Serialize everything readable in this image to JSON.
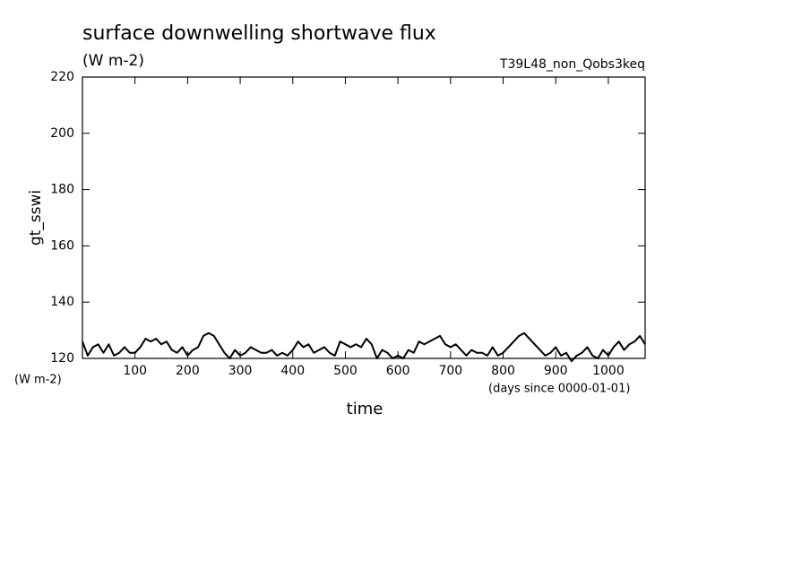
{
  "chart_data": {
    "type": "line",
    "title": "surface downwelling shortwave flux",
    "subtitle": "(W m-2)",
    "run_label": "T39L48_non_Qobs3keq",
    "y_axis_label": "gt_sswi",
    "y_units": "(W m-2)",
    "x_axis_label": "time",
    "x_units": "(days since 0000-01-01)",
    "xlim": [
      0,
      1070
    ],
    "ylim": [
      120,
      220
    ],
    "xticks": [
      100,
      200,
      300,
      400,
      500,
      600,
      700,
      800,
      900,
      1000
    ],
    "yticks": [
      120,
      140,
      160,
      180,
      200,
      220
    ],
    "series": [
      {
        "color": "#000000",
        "x": [
          0,
          10,
          20,
          30,
          40,
          50,
          60,
          70,
          80,
          90,
          100,
          110,
          120,
          130,
          140,
          150,
          160,
          170,
          180,
          190,
          200,
          210,
          220,
          230,
          240,
          250,
          260,
          270,
          280,
          290,
          300,
          310,
          320,
          330,
          340,
          350,
          360,
          370,
          380,
          390,
          400,
          410,
          420,
          430,
          440,
          450,
          460,
          470,
          480,
          490,
          500,
          510,
          520,
          530,
          540,
          550,
          560,
          570,
          580,
          590,
          600,
          610,
          620,
          630,
          640,
          650,
          660,
          670,
          680,
          690,
          700,
          710,
          720,
          730,
          740,
          750,
          760,
          770,
          780,
          790,
          800,
          810,
          820,
          830,
          840,
          850,
          860,
          870,
          880,
          890,
          900,
          910,
          920,
          930,
          940,
          950,
          960,
          970,
          980,
          990,
          1000,
          1010,
          1020,
          1030,
          1040,
          1050,
          1060,
          1070
        ],
        "values": [
          126,
          121,
          124,
          125,
          122,
          125,
          121,
          122,
          124,
          122,
          122,
          124,
          127,
          126,
          127,
          125,
          126,
          123,
          122,
          124,
          121,
          123,
          124,
          128,
          129,
          128,
          125,
          122,
          120,
          123,
          121,
          122,
          124,
          123,
          122,
          122,
          123,
          121,
          122,
          121,
          123,
          126,
          124,
          125,
          122,
          123,
          124,
          122,
          121,
          126,
          125,
          124,
          125,
          124,
          127,
          125,
          120,
          123,
          122,
          120,
          121,
          120,
          123,
          122,
          126,
          125,
          126,
          127,
          128,
          125,
          124,
          125,
          123,
          121,
          123,
          122,
          122,
          121,
          124,
          121,
          122,
          124,
          126,
          128,
          129,
          127,
          125,
          123,
          121,
          122,
          124,
          121,
          122,
          119,
          121,
          122,
          124,
          121,
          120,
          123,
          121,
          124,
          126,
          123,
          125,
          126,
          128,
          125
        ]
      }
    ]
  }
}
